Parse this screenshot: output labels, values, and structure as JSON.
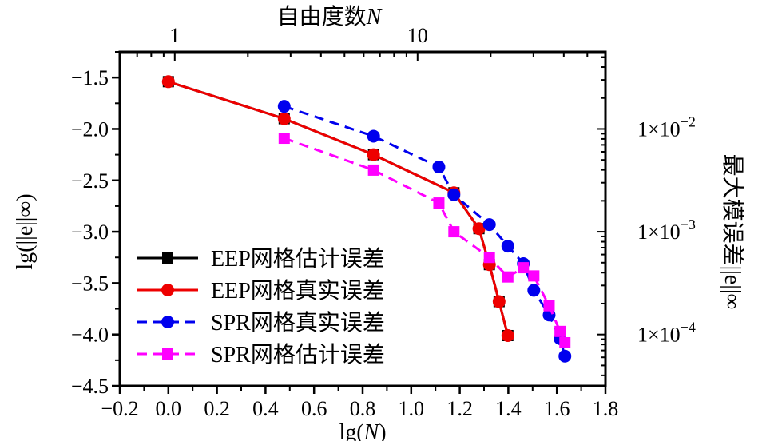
{
  "chart_data": {
    "type": "line",
    "title": "",
    "xlabel": "lg(N)",
    "ylabel": "lg(||e||∞)",
    "top_xlabel": "自由度数N",
    "right_ylabel": "最大模误差||e||∞",
    "xlim": [
      -0.2,
      1.8
    ],
    "ylim": [
      -4.5,
      -1.25
    ],
    "x_ticks": [
      -0.2,
      0.0,
      0.2,
      0.4,
      0.6,
      0.8,
      1.0,
      1.2,
      1.4,
      1.6,
      1.8
    ],
    "x_tick_labels": [
      "−0.2",
      "0.0",
      "0.2",
      "0.4",
      "0.6",
      "0.8",
      "1.0",
      "1.2",
      "1.4",
      "1.6",
      "1.8"
    ],
    "y_ticks": [
      -1.5,
      -2.0,
      -2.5,
      -3.0,
      -3.5,
      -4.0,
      -4.5
    ],
    "y_tick_labels": [
      "−1.5",
      "−2.0",
      "−2.5",
      "−3.0",
      "−3.5",
      "−4.0",
      "−4.5"
    ],
    "top_ticks": [
      1,
      10
    ],
    "top_tick_labels": [
      "1",
      "10"
    ],
    "right_ticks": [
      0.01,
      0.001,
      0.0001
    ],
    "right_tick_labels": [
      {
        "base": "1×10",
        "exp": "−2"
      },
      {
        "base": "1×10",
        "exp": "−3"
      },
      {
        "base": "1×10",
        "exp": "−4"
      }
    ],
    "grid": false,
    "legend_position": "bottom-left",
    "series": [
      {
        "name": "EEP网格估计误差",
        "color": "#000000",
        "marker": "square",
        "dash": "solid",
        "x": [
          0.0,
          0.477,
          0.845,
          1.176,
          1.279,
          1.322,
          1.362,
          1.398
        ],
        "y": [
          -1.54,
          -1.9,
          -2.25,
          -2.62,
          -2.97,
          -3.32,
          -3.68,
          -4.01
        ]
      },
      {
        "name": "EEP网格真实误差",
        "color": "#ee0000",
        "marker": "circle",
        "dash": "solid",
        "x": [
          0.0,
          0.477,
          0.845,
          1.176,
          1.279,
          1.322,
          1.362,
          1.398
        ],
        "y": [
          -1.54,
          -1.9,
          -2.25,
          -2.62,
          -2.97,
          -3.32,
          -3.68,
          -4.01
        ]
      },
      {
        "name": "SPR网格真实误差",
        "color": "#0000ee",
        "marker": "circle",
        "dash": "dashed",
        "x": [
          0.477,
          0.845,
          1.114,
          1.176,
          1.322,
          1.398,
          1.462,
          1.505,
          1.568,
          1.613,
          1.633
        ],
        "y": [
          -1.78,
          -2.07,
          -2.37,
          -2.64,
          -2.93,
          -3.14,
          -3.31,
          -3.57,
          -3.81,
          -4.04,
          -4.21
        ]
      },
      {
        "name": "SPR网格估计误差",
        "color": "#ff00ff",
        "marker": "square",
        "dash": "dashed",
        "x": [
          0.477,
          0.845,
          1.114,
          1.176,
          1.322,
          1.398,
          1.462,
          1.505,
          1.568,
          1.613,
          1.633
        ],
        "y": [
          -2.09,
          -2.4,
          -2.72,
          -3.0,
          -3.25,
          -3.44,
          -3.35,
          -3.43,
          -3.72,
          -3.97,
          -4.08
        ]
      }
    ]
  }
}
